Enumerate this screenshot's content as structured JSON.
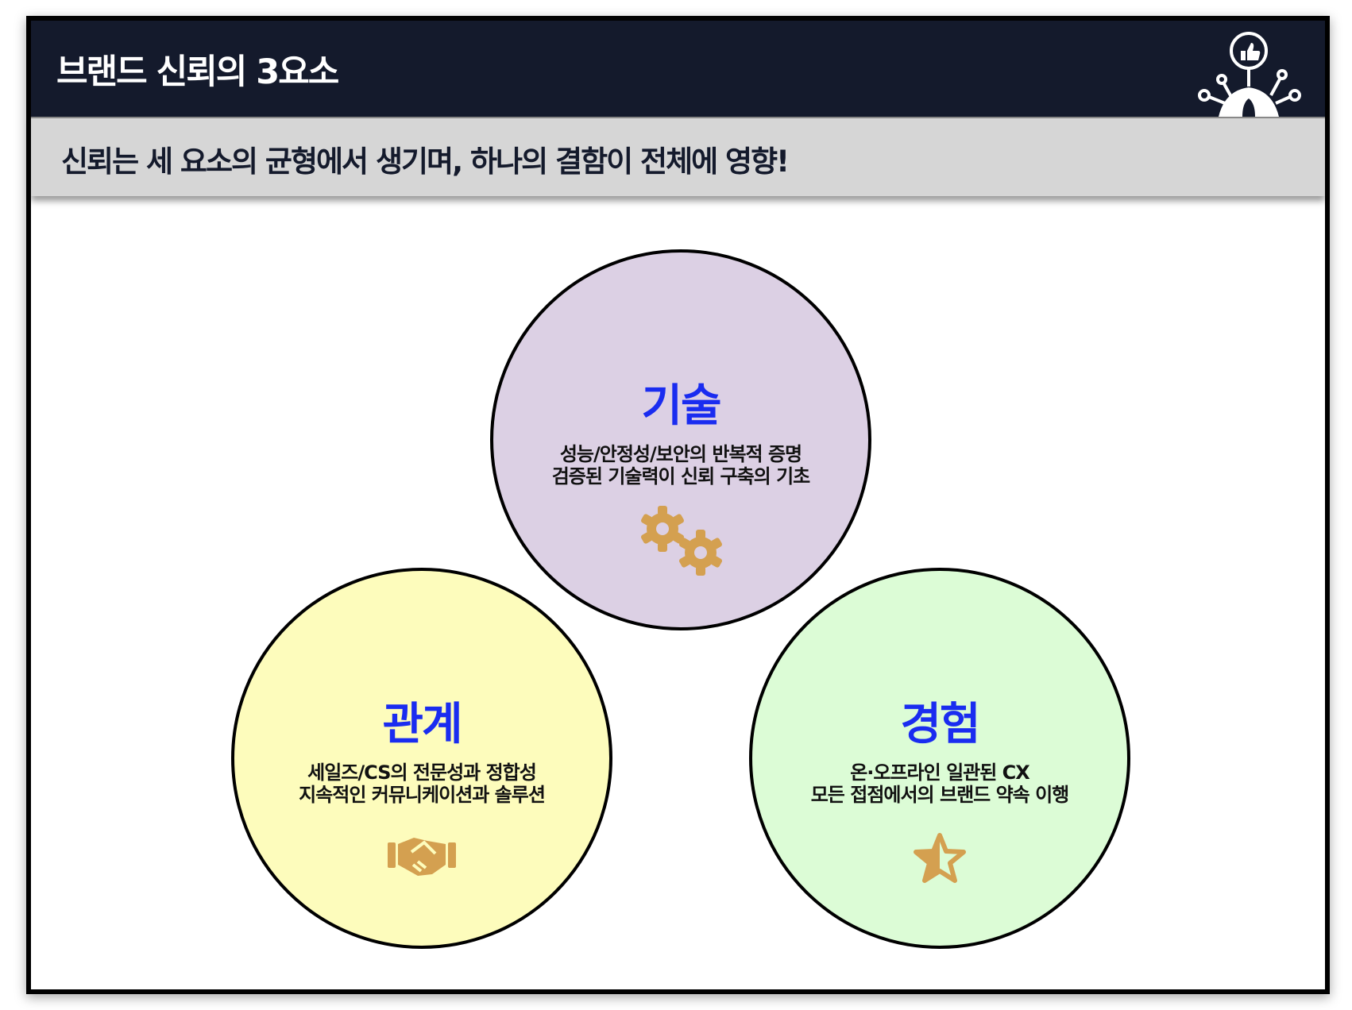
{
  "header": {
    "title": "브랜드 신뢰의 3요소",
    "logo_icon": "thumbs-up-network-icon"
  },
  "subtitle": "신뢰는 세 요소의 균형에서 생기며, 하나의 결함이 전체에 영향!",
  "colors": {
    "header_bg": "#141a2c",
    "title_accent": "#1a2cf0",
    "icon": "#d4a050"
  },
  "circles": [
    {
      "title": "기술",
      "lines": [
        "성능/안정성/보안의 반복적 증명",
        "검증된 기술력이 신뢰 구축의 기초"
      ],
      "icon": "gears-icon",
      "fill": "#dcd0e4"
    },
    {
      "title": "관계",
      "lines": [
        "세일즈/CS의 전문성과 정합성",
        "지속적인 커뮤니케이션과 솔루션"
      ],
      "icon": "handshake-icon",
      "fill": "#fdfcbc"
    },
    {
      "title": "경험",
      "lines": [
        "온·오프라인 일관된 CX",
        "모든 접점에서의 브랜드 약속 이행"
      ],
      "icon": "star-icon",
      "fill": "#dcfcd6"
    }
  ]
}
